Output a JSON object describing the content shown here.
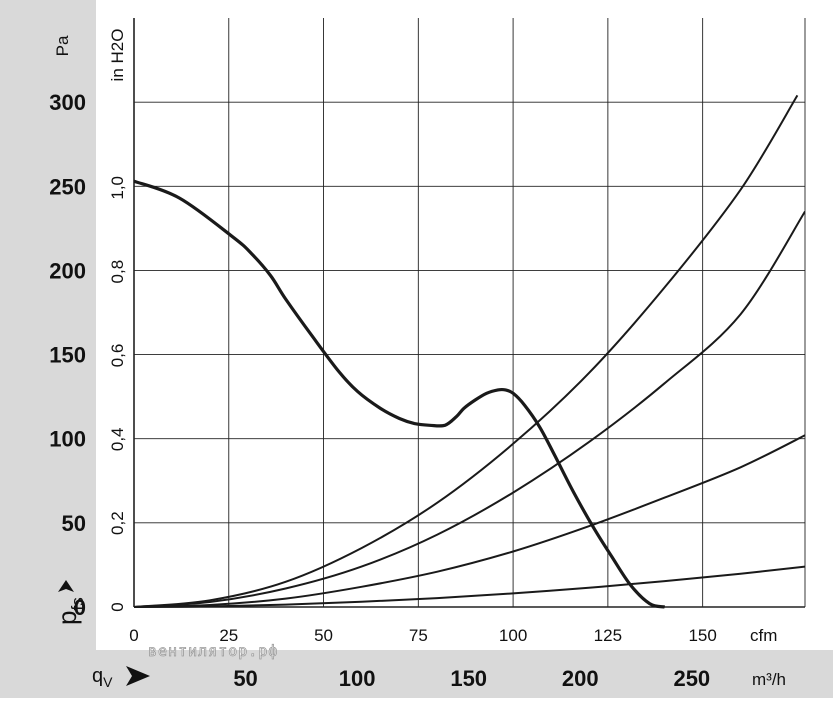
{
  "chart_data": {
    "type": "line",
    "x_primary": {
      "unit": "cfm",
      "ticks": [
        0,
        25,
        50,
        75,
        100,
        125,
        150
      ],
      "range": [
        0,
        177
      ]
    },
    "x_secondary": {
      "unit": "m³/h",
      "ticks": [
        50,
        100,
        150,
        200,
        250
      ]
    },
    "y_primary": {
      "unit": "Pa",
      "ticks": [
        0,
        50,
        100,
        150,
        200,
        250,
        300
      ],
      "range": [
        0,
        350
      ]
    },
    "y_secondary": {
      "unit": "in H2O",
      "ticks": [
        "0",
        "0,2",
        "0,4",
        "0,6",
        "0,8",
        "1,0"
      ]
    },
    "y_axis_symbol": {
      "base": "p",
      "sub": "fs"
    },
    "x_axis_symbol": {
      "base": "q",
      "sub": "V"
    },
    "grid": true,
    "watermark": "вентилятор.рф",
    "series": [
      {
        "role": "fan-curve",
        "x": [
          0,
          12,
          26,
          31,
          36,
          40,
          47,
          54,
          59,
          65,
          70,
          74,
          78,
          82,
          85,
          87,
          90,
          93,
          96,
          98,
          100,
          103,
          107,
          111,
          116,
          121,
          126,
          131,
          136,
          140
        ],
        "y": [
          253,
          243,
          220,
          210,
          197,
          183,
          161,
          140,
          128,
          118,
          112,
          109,
          108,
          108,
          113,
          118,
          123,
          127,
          129,
          129,
          127,
          120,
          107,
          90,
          68,
          48,
          30,
          13,
          2,
          0
        ]
      },
      {
        "role": "system-curve",
        "x": [
          0,
          20,
          40,
          60,
          80,
          100,
          120,
          140,
          160,
          175
        ],
        "y": [
          0,
          4,
          15,
          35,
          62,
          97,
          139,
          190,
          248,
          304
        ]
      },
      {
        "role": "system-curve",
        "x": [
          0,
          20,
          40,
          60,
          80,
          100,
          120,
          140,
          160,
          177
        ],
        "y": [
          0,
          3,
          11,
          24,
          43,
          68,
          98,
          133,
          174,
          235
        ]
      },
      {
        "role": "system-curve",
        "x": [
          0,
          20,
          40,
          60,
          80,
          100,
          120,
          140,
          160,
          177
        ],
        "y": [
          0,
          1.2,
          5,
          12,
          21,
          33,
          48,
          65,
          83,
          102
        ]
      },
      {
        "role": "system-curve",
        "x": [
          0,
          20,
          40,
          60,
          80,
          100,
          120,
          140,
          160,
          177
        ],
        "y": [
          0,
          0.4,
          1.6,
          4,
          7,
          11,
          17,
          23,
          30,
          24
        ]
      }
    ]
  },
  "styles": {
    "band_color": "#d9d9d9",
    "line_color": "#1a1a1a",
    "grid_color": "#222222"
  }
}
